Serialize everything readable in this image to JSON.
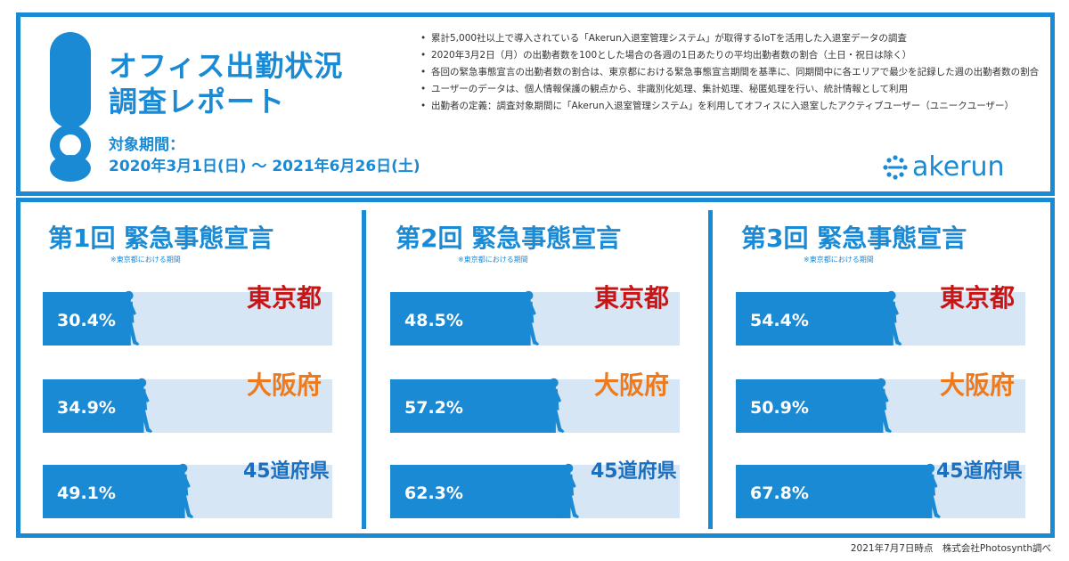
{
  "header": {
    "title_line1": "オフィス出勤状況",
    "title_line2": "調査レポート",
    "period_label": "対象期間：",
    "period_value": "2020年3月1日(日) 〜 2021年6月26日(土)",
    "brand": "akerun",
    "notes": [
      "累計5,000社以上で導入されている「Akerun入退室管理システム」が取得するIoTを活用した入退室データの調査",
      "2020年3月2日（月）の出勤者数を100とした場合の各週の1日あたりの平均出勤者数の割合（土日・祝日は除く）",
      "各回の緊急事態宣言の出勤者数の割合は、東京都における緊急事態宣言期間を基準に、同期間中に各エリアで最少を記録した週の出勤者数の割合",
      "ユーザーのデータは、個人情報保護の観点から、非識別化処理、集計処理、秘匿処理を行い、統計情報として利用",
      "出勤者の定義：調査対象期間に「Akerun入退室管理システム」を利用してオフィスに入退室したアクティブユーザー（ユニークユーザー）"
    ]
  },
  "footer": "2021年7月7日時点　株式会社Photosynth調べ",
  "colors": {
    "accent": "#1a8ad4",
    "track": "#d6e6f5",
    "tokyo": "#c81414",
    "osaka": "#ee7a1e",
    "prefectures": "#1a6fc0"
  },
  "chart_data": [
    {
      "type": "bar",
      "title": "第1回 緊急事態宣言",
      "subtitle": "※東京都における期間",
      "categories": [
        "東京都",
        "大阪府",
        "45道府県"
      ],
      "values": [
        30.4,
        34.9,
        49.1
      ],
      "value_labels": [
        "30.4%",
        "34.9%",
        "49.1%"
      ],
      "unit": "%",
      "xlim": [
        0,
        100
      ]
    },
    {
      "type": "bar",
      "title": "第2回 緊急事態宣言",
      "subtitle": "※東京都における期間",
      "categories": [
        "東京都",
        "大阪府",
        "45道府県"
      ],
      "values": [
        48.5,
        57.2,
        62.3
      ],
      "value_labels": [
        "48.5%",
        "57.2%",
        "62.3%"
      ],
      "unit": "%",
      "xlim": [
        0,
        100
      ]
    },
    {
      "type": "bar",
      "title": "第3回 緊急事態宣言",
      "subtitle": "※東京都における期間",
      "categories": [
        "東京都",
        "大阪府",
        "45道府県"
      ],
      "values": [
        54.4,
        50.9,
        67.8
      ],
      "value_labels": [
        "54.4%",
        "50.9%",
        "67.8%"
      ],
      "unit": "%",
      "xlim": [
        0,
        100
      ]
    }
  ]
}
